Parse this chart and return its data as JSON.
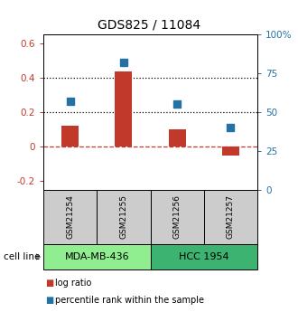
{
  "title": "GDS825 / 11084",
  "samples": [
    "GSM21254",
    "GSM21255",
    "GSM21256",
    "GSM21257"
  ],
  "log_ratios": [
    0.12,
    0.435,
    0.1,
    -0.05
  ],
  "percentile_ranks": [
    57,
    82,
    55,
    40
  ],
  "left_ylim": [
    -0.25,
    0.65
  ],
  "right_ylim": [
    0,
    100
  ],
  "left_yticks": [
    -0.2,
    0.0,
    0.2,
    0.4,
    0.6
  ],
  "right_yticks": [
    0,
    25,
    50,
    75,
    100
  ],
  "hlines_dotted": [
    0.2,
    0.4
  ],
  "hline_dashed": 0.0,
  "bar_color": "#c0392b",
  "dot_color": "#2471a3",
  "cell_lines": [
    {
      "label": "MDA-MB-436",
      "samples": [
        0,
        1
      ],
      "color": "#90EE90"
    },
    {
      "label": "HCC 1954",
      "samples": [
        2,
        3
      ],
      "color": "#3CB371"
    }
  ],
  "cell_line_row_label": "cell line",
  "legend_red_label": "log ratio",
  "legend_blue_label": "percentile rank within the sample",
  "sample_box_color": "#cccccc",
  "left_axis_color": "#c0392b",
  "right_axis_color": "#2471a3"
}
